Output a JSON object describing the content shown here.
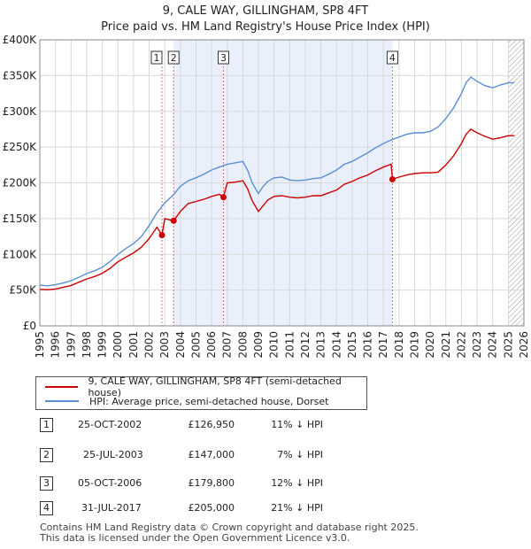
{
  "chart_data": {
    "type": "line",
    "title": "9, CALE WAY, GILLINGHAM, SP8 4FT",
    "subtitle": "Price paid vs. HM Land Registry's House Price Index (HPI)",
    "xlabel": "",
    "ylabel": "",
    "xlim": [
      1995,
      2026
    ],
    "ylim": [
      0,
      400000
    ],
    "x_ticks": [
      1995,
      1996,
      1997,
      1998,
      1999,
      2000,
      2001,
      2002,
      2003,
      2004,
      2005,
      2006,
      2007,
      2008,
      2009,
      2010,
      2011,
      2012,
      2013,
      2014,
      2015,
      2016,
      2017,
      2018,
      2019,
      2020,
      2021,
      2022,
      2023,
      2024,
      2025,
      2026
    ],
    "y_ticks": [
      {
        "value": 0,
        "label": "£0"
      },
      {
        "value": 50000,
        "label": "£50K"
      },
      {
        "value": 100000,
        "label": "£100K"
      },
      {
        "value": 150000,
        "label": "£150K"
      },
      {
        "value": 200000,
        "label": "£200K"
      },
      {
        "value": 250000,
        "label": "£250K"
      },
      {
        "value": 300000,
        "label": "£300K"
      },
      {
        "value": 350000,
        "label": "£350K"
      },
      {
        "value": 400000,
        "label": "£400K"
      }
    ],
    "grid": true,
    "shaded_region": {
      "from": 2003.57,
      "to": 2017.58
    },
    "hatched_from": 2025.0,
    "series": [
      {
        "name": "HPI: Average price, semi-detached house, Dorset",
        "color": "#5b8fd4",
        "x": [
          1995,
          1995.5,
          1996,
          1996.5,
          1997,
          1997.5,
          1998,
          1998.5,
          1999,
          1999.5,
          2000,
          2000.5,
          2001,
          2001.5,
          2002,
          2002.5,
          2003,
          2003.5,
          2004,
          2004.5,
          2005,
          2005.5,
          2006,
          2006.5,
          2007,
          2007.5,
          2008,
          2008.3,
          2008.6,
          2009,
          2009.3,
          2009.6,
          2010,
          2010.5,
          2011,
          2011.5,
          2012,
          2012.5,
          2013,
          2013.5,
          2014,
          2014.5,
          2015,
          2015.5,
          2016,
          2016.5,
          2017,
          2017.5,
          2018,
          2018.5,
          2019,
          2019.5,
          2020,
          2020.5,
          2021,
          2021.5,
          2022,
          2022.3,
          2022.6,
          2023,
          2023.5,
          2024,
          2024.5,
          2025,
          2025.4
        ],
        "values": [
          57000,
          56000,
          57500,
          60000,
          63000,
          68000,
          73000,
          77000,
          82000,
          90000,
          100000,
          108000,
          115000,
          125000,
          140000,
          158000,
          172000,
          182000,
          195000,
          203000,
          207000,
          212000,
          218000,
          222000,
          226000,
          228000,
          230000,
          218000,
          200000,
          185000,
          195000,
          202000,
          207000,
          208000,
          204000,
          203000,
          204000,
          206000,
          207000,
          212000,
          218000,
          226000,
          230000,
          236000,
          242000,
          249000,
          255000,
          260000,
          264000,
          268000,
          270000,
          270000,
          272000,
          278000,
          290000,
          305000,
          325000,
          340000,
          348000,
          342000,
          336000,
          333000,
          337000,
          340000,
          340000
        ]
      },
      {
        "name": "9, CALE WAY, GILLINGHAM, SP8 4FT (semi-detached house)",
        "color": "#cc0000",
        "x": [
          1995,
          1995.5,
          1996,
          1996.5,
          1997,
          1997.5,
          1998,
          1998.5,
          1999,
          1999.5,
          2000,
          2000.5,
          2001,
          2001.5,
          2002,
          2002.5,
          2002.82,
          2003,
          2003.57,
          2004,
          2004.5,
          2005,
          2005.5,
          2006,
          2006.5,
          2006.76,
          2007,
          2007.5,
          2008,
          2008.3,
          2008.6,
          2009,
          2009.3,
          2009.6,
          2010,
          2010.5,
          2011,
          2011.5,
          2012,
          2012.5,
          2013,
          2013.5,
          2014,
          2014.5,
          2015,
          2015.5,
          2016,
          2016.5,
          2017,
          2017.5,
          2017.58,
          2018,
          2018.5,
          2019,
          2019.5,
          2020,
          2020.5,
          2021,
          2021.5,
          2022,
          2022.3,
          2022.6,
          2023,
          2023.5,
          2024,
          2024.5,
          2025,
          2025.4
        ],
        "values": [
          51000,
          50500,
          51500,
          54000,
          56500,
          61000,
          65500,
          69000,
          73500,
          80500,
          89500,
          96000,
          102000,
          110000,
          122000,
          138000,
          126950,
          150000,
          147000,
          160000,
          171000,
          174000,
          177000,
          181000,
          184000,
          179800,
          200000,
          201000,
          203000,
          192000,
          175000,
          160000,
          168000,
          176000,
          181000,
          182000,
          180000,
          179000,
          180000,
          182000,
          182000,
          186000,
          190000,
          198000,
          202000,
          207000,
          211000,
          217000,
          222000,
          226000,
          205000,
          208000,
          211000,
          213000,
          214000,
          214000,
          215000,
          225000,
          238000,
          255000,
          268000,
          275000,
          270000,
          265000,
          261000,
          263000,
          266000,
          266000
        ]
      }
    ],
    "sales": [
      {
        "num": "1",
        "x": 2002.82,
        "price": 126950
      },
      {
        "num": "2",
        "x": 2003.57,
        "price": 147000
      },
      {
        "num": "3",
        "x": 2006.76,
        "price": 179800
      },
      {
        "num": "4",
        "x": 2017.58,
        "price": 205000
      }
    ]
  },
  "legend": {
    "price_paid_label": "9, CALE WAY, GILLINGHAM, SP8 4FT (semi-detached house)",
    "hpi_label": "HPI: Average price, semi-detached house, Dorset",
    "price_paid_color": "#cc0000",
    "hpi_color": "#5b8fd4"
  },
  "transactions": [
    {
      "num": "1",
      "date": "25-OCT-2002",
      "price": "£126,950",
      "hpi": "11% ↓ HPI"
    },
    {
      "num": "2",
      "date": "25-JUL-2003",
      "price": "£147,000",
      "hpi": "7% ↓ HPI"
    },
    {
      "num": "3",
      "date": "05-OCT-2006",
      "price": "£179,800",
      "hpi": "12% ↓ HPI"
    },
    {
      "num": "4",
      "date": "31-JUL-2017",
      "price": "£205,000",
      "hpi": "21% ↓ HPI"
    }
  ],
  "footer": {
    "line1": "Contains HM Land Registry data © Crown copyright and database right 2025.",
    "line2": "This data is licensed under the Open Government Licence v3.0."
  }
}
